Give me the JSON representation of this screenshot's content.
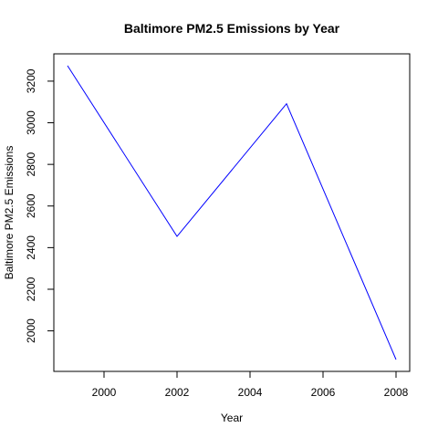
{
  "chart_data": {
    "type": "line",
    "title": "Baltimore PM2.5 Emissions by Year",
    "xlabel": "Year",
    "ylabel": "Baltimore PM2.5 Emissions",
    "x": [
      1999,
      2002,
      2005,
      2008
    ],
    "series": [
      {
        "values": [
          3274.2,
          2453.9,
          3091.4,
          1862.3
        ],
        "color": "#0000ff"
      }
    ],
    "xlim": [
      1999,
      2008
    ],
    "ylim": [
      1862.3,
      3274.2
    ],
    "xticks": [
      2000,
      2002,
      2004,
      2006,
      2008
    ],
    "yticks": [
      2000,
      2200,
      2400,
      2600,
      2800,
      3000,
      3200
    ],
    "xtick_labels": [
      "2000",
      "2002",
      "2004",
      "2006",
      "2008"
    ],
    "ytick_labels": [
      "2000",
      "2200",
      "2400",
      "2600",
      "2800",
      "3000",
      "3200"
    ],
    "grid": false,
    "legend": "none"
  }
}
